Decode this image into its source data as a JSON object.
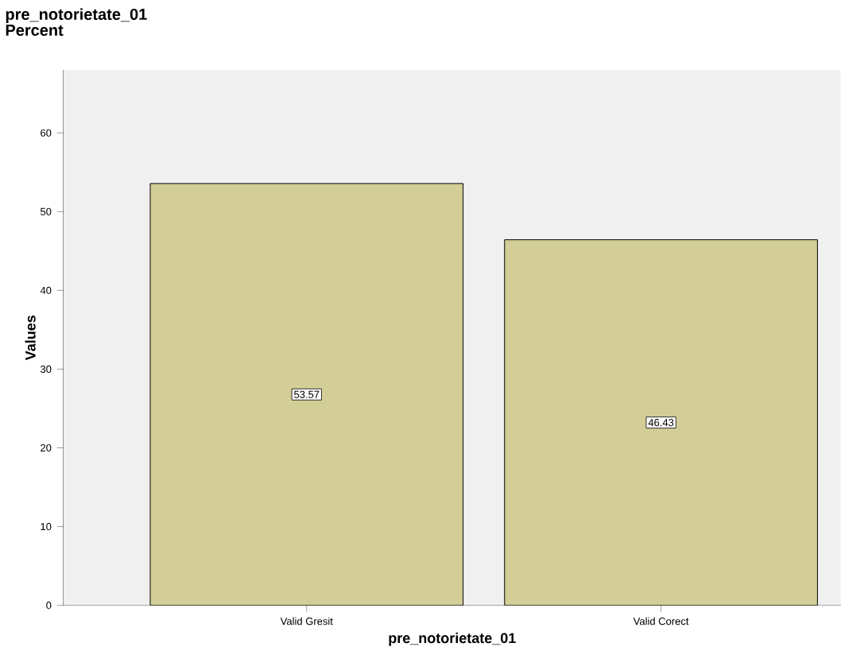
{
  "chart_data": {
    "type": "bar",
    "title": "pre_notorietate_01",
    "subtitle": "Percent",
    "xlabel": "pre_notorietate_01",
    "ylabel": "Values",
    "categories": [
      "Valid Gresit",
      "Valid Corect"
    ],
    "values": [
      53.57,
      46.43
    ],
    "color": "#d3ce97",
    "ylim": [
      0,
      68
    ],
    "yticks": [
      0,
      10,
      20,
      30,
      40,
      50,
      60
    ],
    "data_labels": true,
    "grid": false
  }
}
